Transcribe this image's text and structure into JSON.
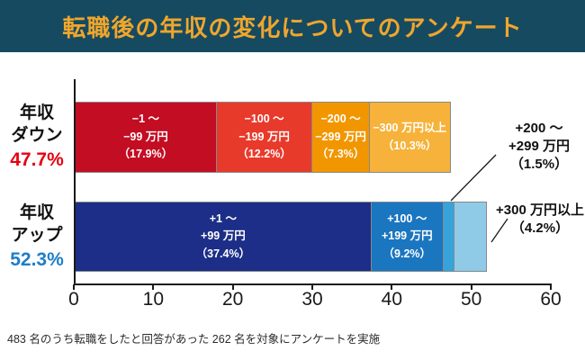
{
  "title": "転職後の年収の変化についてのアンケート",
  "footer": "483 名のうち転職をしたと回答があった 262 名を対象にアンケートを実施",
  "colors": {
    "banner_bg": "#164a60",
    "title_gold": "#efa62d",
    "axis": "#1a1a1a",
    "down_total_red": "#e60012",
    "up_total_blue": "#1e7ec8"
  },
  "chart_data": {
    "type": "bar",
    "orientation": "horizontal",
    "stacked": true,
    "title": "転職後の年収の変化についてのアンケート",
    "xlim": [
      0,
      60
    ],
    "x_ticks": [
      "0",
      "10",
      "20",
      "30",
      "40",
      "50",
      "60"
    ],
    "unit": "%",
    "grid": false,
    "rows": [
      {
        "category": "年収ダウン",
        "label_lines": [
          "年収",
          "ダウン"
        ],
        "total_label": "47.7%",
        "total_value": 47.7,
        "total_color": "#e60012",
        "segments": [
          {
            "name": "-1～-99万円",
            "value": 17.9,
            "color": "#c30d23",
            "lines": [
              "−1 ～",
              "−99 万円",
              "（17.9%）"
            ]
          },
          {
            "name": "-100～-199万円",
            "value": 12.2,
            "color": "#e83a2b",
            "lines": [
              "−100 ～",
              "−199 万円",
              "（12.2%）"
            ]
          },
          {
            "name": "-200～-299万円",
            "value": 7.3,
            "color": "#f29600",
            "lines": [
              "−200 ～",
              "−299 万円",
              "（7.3%）"
            ]
          },
          {
            "name": "-300万円以上",
            "value": 10.3,
            "color": "#f6b23a",
            "lines": [
              "−300 万円以上",
              "（10.3%）"
            ]
          }
        ]
      },
      {
        "category": "年収アップ",
        "label_lines": [
          "年収",
          "アップ"
        ],
        "total_label": "52.3%",
        "total_value": 52.3,
        "total_color": "#1e7ec8",
        "segments": [
          {
            "name": "+1～+99万円",
            "value": 37.4,
            "color": "#1c2e87",
            "lines": [
              "+1 ～",
              "+99 万円",
              "（37.4%）"
            ]
          },
          {
            "name": "+100～+199万円",
            "value": 9.2,
            "color": "#1b76c0",
            "lines": [
              "+100 ～",
              "+199 万円",
              "（9.2%）"
            ]
          },
          {
            "name": "+200～+299万円",
            "value": 1.5,
            "color": "#36a3db",
            "lines": []
          },
          {
            "name": "+300万円以上",
            "value": 4.2,
            "color": "#8fcae7",
            "lines": []
          }
        ]
      }
    ],
    "annotations": [
      {
        "target": "+200～+299万円",
        "lines": [
          "+200 ～",
          "+299 万円",
          "（1.5%）"
        ]
      },
      {
        "target": "+300万円以上",
        "lines": [
          "+300 万円以上",
          "（4.2%）"
        ]
      }
    ]
  }
}
